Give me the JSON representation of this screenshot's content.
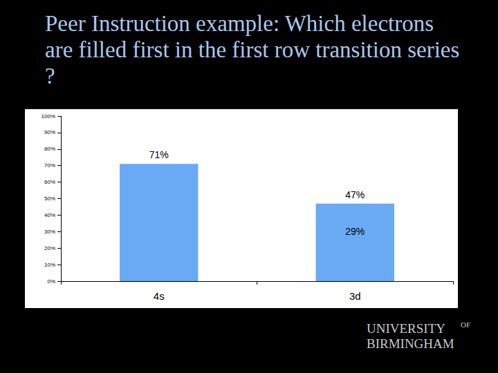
{
  "chart_data": {
    "type": "bar",
    "title": "Peer Instruction example: Which electrons are filled first in the first row transition series?",
    "categories": [
      "4s",
      "3d"
    ],
    "values": [
      71,
      47
    ],
    "value_labels": [
      "71%",
      "47%"
    ],
    "color": "#6aaaf5",
    "ylim": [
      0,
      100
    ],
    "yticks": [
      {
        "value": 0,
        "label": "0%"
      },
      {
        "value": 10,
        "label": "10%"
      },
      {
        "value": 20,
        "label": "20%"
      },
      {
        "value": 30,
        "label": "30%"
      },
      {
        "value": 40,
        "label": "40%"
      },
      {
        "value": 50,
        "label": "50%"
      },
      {
        "value": 60,
        "label": "60%"
      },
      {
        "value": 70,
        "label": "70%"
      },
      {
        "value": 80,
        "label": "80%"
      },
      {
        "value": 90,
        "label": "90%"
      },
      {
        "value": 100,
        "label": "100%"
      }
    ],
    "grid": false,
    "data_labels": true,
    "annotations": [
      {
        "category": "3d",
        "text": "29%"
      }
    ]
  },
  "logo": {
    "line1": "UNIVERSITY",
    "superscript": "OF",
    "line2": "BIRMINGHAM"
  }
}
